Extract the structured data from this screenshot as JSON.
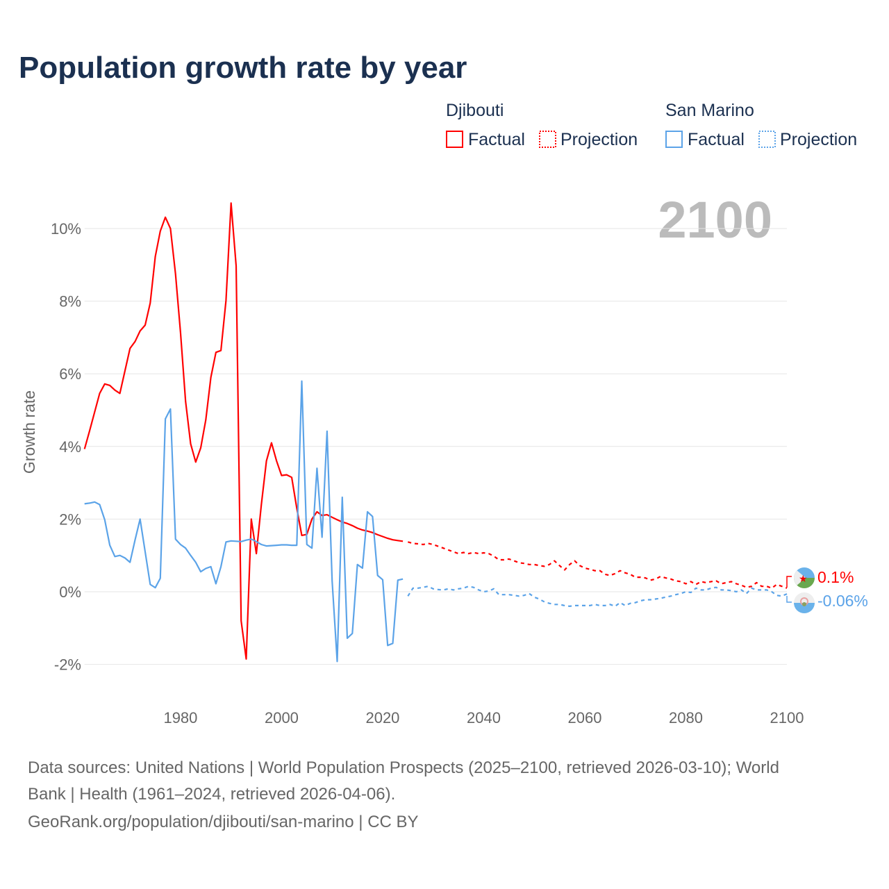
{
  "colors": {
    "djibouti": "#ff0000",
    "san_marino": "#5ba3e8",
    "title": "#1b3050",
    "grid": "#e6e6e6",
    "year": "#bbbbbb"
  },
  "chart_data": {
    "type": "line",
    "title": "Population growth rate by year",
    "ylabel": "Growth rate",
    "xlabel": "",
    "xlim": [
      1961,
      2100
    ],
    "ylim": [
      -2.9,
      11
    ],
    "yticks": [
      -2,
      0,
      2,
      4,
      6,
      8,
      10
    ],
    "ytick_labels": [
      "-2%",
      "0%",
      "2%",
      "4%",
      "6%",
      "8%",
      "10%"
    ],
    "xticks": [
      1980,
      2000,
      2020,
      2040,
      2060,
      2080,
      2100
    ],
    "xtick_labels": [
      "1980",
      "2000",
      "2020",
      "2040",
      "2060",
      "2080",
      "2100"
    ],
    "current_year": "2100",
    "grid": true,
    "legend_placement": "top-right",
    "legend": {
      "groups": [
        {
          "name": "Djibouti",
          "items": [
            "Factual",
            "Projection"
          ]
        },
        {
          "name": "San Marino",
          "items": [
            "Factual",
            "Projection"
          ]
        }
      ]
    },
    "series": [
      {
        "name": "Djibouti",
        "kind": "Factual",
        "x_start": 1961,
        "values": [
          3.93,
          4.43,
          4.95,
          5.46,
          5.72,
          5.68,
          5.55,
          5.46,
          6.08,
          6.7,
          6.89,
          7.18,
          7.34,
          7.95,
          9.23,
          9.93,
          10.31,
          10.0,
          8.75,
          7.14,
          5.24,
          4.07,
          3.57,
          3.96,
          4.73,
          5.9,
          6.59,
          6.64,
          8.02,
          10.7,
          8.97,
          -0.8,
          -1.85,
          2.0,
          1.05,
          2.4,
          3.6,
          4.1,
          3.6,
          3.2,
          3.22,
          3.15,
          2.3,
          1.55,
          1.58,
          2.0,
          2.2,
          2.1,
          2.12,
          2.05,
          1.98,
          1.92,
          1.88,
          1.82,
          1.75,
          1.7,
          1.67,
          1.63,
          1.57,
          1.52,
          1.47,
          1.43,
          1.41,
          1.39
        ]
      },
      {
        "name": "Djibouti",
        "kind": "Projection",
        "x_start": 2025,
        "values": [
          1.37,
          1.33,
          1.32,
          1.3,
          1.33,
          1.3,
          1.25,
          1.2,
          1.15,
          1.1,
          1.05,
          1.08,
          1.05,
          1.08,
          1.05,
          1.07,
          1.05,
          0.98,
          0.88,
          0.88,
          0.9,
          0.85,
          0.8,
          0.78,
          0.75,
          0.75,
          0.72,
          0.7,
          0.75,
          0.85,
          0.72,
          0.6,
          0.75,
          0.85,
          0.72,
          0.65,
          0.62,
          0.58,
          0.58,
          0.48,
          0.45,
          0.5,
          0.58,
          0.52,
          0.48,
          0.4,
          0.4,
          0.38,
          0.32,
          0.35,
          0.42,
          0.38,
          0.35,
          0.3,
          0.28,
          0.22,
          0.28,
          0.2,
          0.28,
          0.25,
          0.28,
          0.3,
          0.22,
          0.25,
          0.28,
          0.22,
          0.18,
          0.12,
          0.15,
          0.25,
          0.15,
          0.15,
          0.1,
          0.2,
          0.15,
          0.1
        ]
      },
      {
        "name": "San Marino",
        "kind": "Factual",
        "x_start": 1961,
        "values": [
          2.42,
          2.44,
          2.47,
          2.4,
          1.98,
          1.28,
          0.97,
          1.0,
          0.93,
          0.81,
          1.43,
          2.0,
          1.1,
          0.2,
          0.11,
          0.37,
          4.76,
          5.03,
          1.45,
          1.3,
          1.2,
          1.0,
          0.81,
          0.55,
          0.64,
          0.69,
          0.22,
          0.69,
          1.37,
          1.4,
          1.39,
          1.38,
          1.42,
          1.45,
          1.38,
          1.3,
          1.26,
          1.27,
          1.28,
          1.29,
          1.29,
          1.28,
          1.28,
          5.8,
          1.3,
          1.2,
          3.4,
          1.5,
          4.42,
          0.3,
          -1.92,
          2.6,
          -1.28,
          -1.15,
          0.75,
          0.65,
          2.2,
          2.07,
          0.45,
          0.33,
          -1.48,
          -1.42,
          0.32,
          0.35
        ]
      },
      {
        "name": "San Marino",
        "kind": "Projection",
        "x_start": 2025,
        "values": [
          -0.12,
          0.1,
          0.1,
          0.12,
          0.15,
          0.08,
          0.06,
          0.05,
          0.08,
          0.05,
          0.08,
          0.1,
          0.15,
          0.12,
          0.05,
          0.0,
          0.02,
          0.08,
          -0.08,
          -0.08,
          -0.08,
          -0.1,
          -0.12,
          -0.1,
          -0.05,
          -0.15,
          -0.2,
          -0.28,
          -0.32,
          -0.35,
          -0.35,
          -0.38,
          -0.4,
          -0.38,
          -0.38,
          -0.38,
          -0.38,
          -0.35,
          -0.38,
          -0.38,
          -0.35,
          -0.4,
          -0.3,
          -0.38,
          -0.32,
          -0.3,
          -0.25,
          -0.22,
          -0.22,
          -0.2,
          -0.18,
          -0.15,
          -0.12,
          -0.08,
          -0.05,
          0.0,
          -0.02,
          0.1,
          0.05,
          0.05,
          0.1,
          0.12,
          0.05,
          0.05,
          0.03,
          0.0,
          0.05,
          -0.05,
          0.1,
          0.05,
          0.05,
          0.05,
          0.0,
          -0.1,
          -0.12,
          -0.06
        ]
      }
    ],
    "end_labels": {
      "djibouti": "0.1%",
      "san_marino": "-0.06%"
    }
  },
  "footer": {
    "line1": "Data sources: United Nations | World Population Prospects (2025–2100, retrieved 2026-03-10); World",
    "line2": "Bank | Health (1961–2024, retrieved 2026-04-06).",
    "line3": "GeoRank.org/population/djibouti/san-marino | CC BY"
  }
}
